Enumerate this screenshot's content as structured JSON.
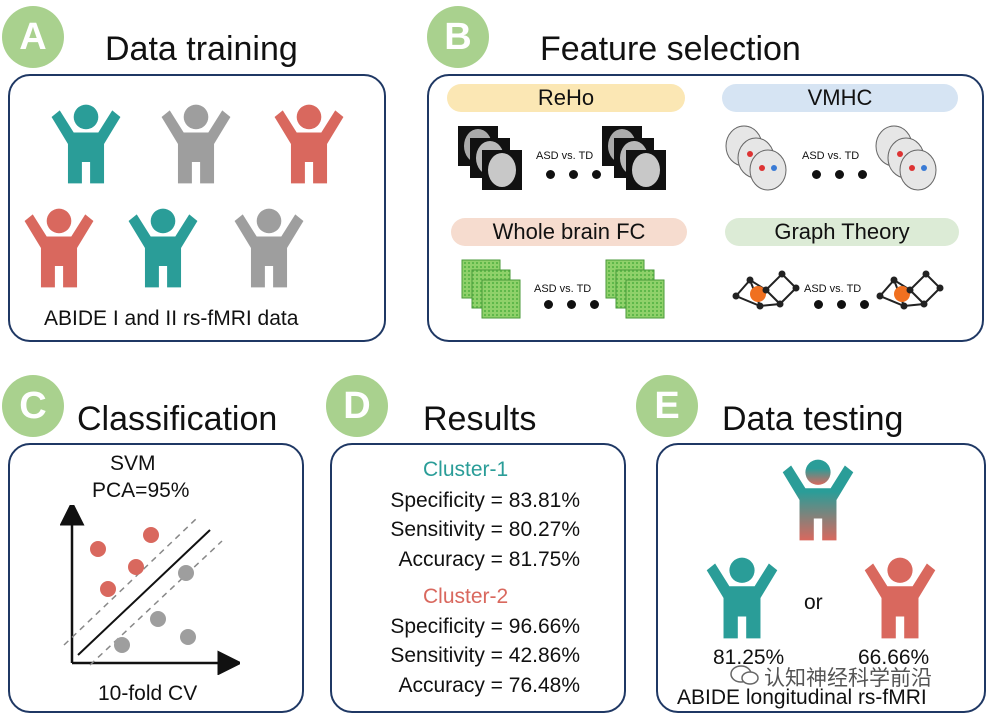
{
  "colors": {
    "teal": "#2a9d98",
    "gray": "#9e9e9e",
    "red": "#d9685e",
    "badge": "#a9d18e",
    "border": "#1f3864"
  },
  "panel_a": {
    "letter": "A",
    "title": "Data training",
    "caption": "ABIDE I and II rs-fMRI data"
  },
  "panel_b": {
    "letter": "B",
    "title": "Feature selection",
    "features": [
      {
        "label": "ReHo",
        "comparison": "ASD vs. TD"
      },
      {
        "label": "VMHC",
        "comparison": "ASD vs. TD"
      },
      {
        "label": "Whole brain FC",
        "comparison": "ASD vs. TD"
      },
      {
        "label": "Graph Theory",
        "comparison": "ASD vs. TD"
      }
    ]
  },
  "panel_c": {
    "letter": "C",
    "title": "Classification",
    "method": "SVM",
    "pca": "PCA=95%",
    "cv": "10-fold CV"
  },
  "panel_d": {
    "letter": "D",
    "title": "Results",
    "cluster1": {
      "name": "Cluster-1",
      "specificity": "Specificity = 83.81%",
      "sensitivity": "Sensitivity = 80.27%",
      "accuracy": "Accuracy = 81.75%"
    },
    "cluster2": {
      "name": "Cluster-2",
      "specificity": "Specificity = 96.66%",
      "sensitivity": "Sensitivity = 42.86%",
      "accuracy": "Accuracy = 76.48%"
    }
  },
  "panel_e": {
    "letter": "E",
    "title": "Data testing",
    "or": "or",
    "left_pct": "81.25%",
    "right_pct": "66.66%",
    "caption": "ABIDE longitudinal rs-fMRI"
  },
  "watermark": "认知神经科学前沿"
}
